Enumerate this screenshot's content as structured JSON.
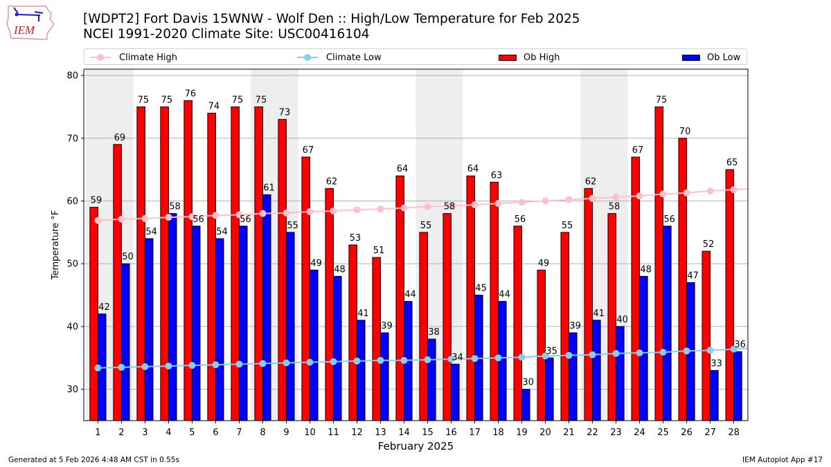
{
  "header": {
    "logo_text": "IEM",
    "title_line1": "[WDPT2] Fort Davis 15WNW - Wolf Den :: High/Low Temperature for Feb 2025",
    "title_line2": "NCEI 1991-2020 Climate Site: USC00416104"
  },
  "legend": {
    "items": [
      {
        "label": "Climate High",
        "kind": "line-marker",
        "color": "#ffc0cb"
      },
      {
        "label": "Climate Low",
        "kind": "line-marker",
        "color": "#87ceeb"
      },
      {
        "label": "Ob High",
        "kind": "bar",
        "color": "#ff0000"
      },
      {
        "label": "Ob Low",
        "kind": "bar",
        "color": "#0000ff"
      }
    ]
  },
  "footer": {
    "generated": "Generated at 5 Feb 2026 4:48 AM CST in 0.55s",
    "app": "IEM Autoplot App #17"
  },
  "chart_data": {
    "type": "bar",
    "title": "[WDPT2] Fort Davis 15WNW - Wolf Den :: High/Low Temperature for Feb 2025",
    "subtitle": "NCEI 1991-2020 Climate Site: USC00416104",
    "xlabel": "February 2025",
    "ylabel": "Temperature °F",
    "ylim": [
      25,
      81
    ],
    "yticks": [
      30,
      40,
      50,
      60,
      70,
      80
    ],
    "grid": "horizontal",
    "legend_position": "top (above plot, full width)",
    "weekend_shaded_days": [
      1,
      2,
      8,
      9,
      15,
      16,
      22,
      23
    ],
    "categories": [
      "1",
      "2",
      "3",
      "4",
      "5",
      "6",
      "7",
      "8",
      "9",
      "10",
      "11",
      "12",
      "13",
      "14",
      "15",
      "16",
      "17",
      "18",
      "19",
      "20",
      "21",
      "22",
      "23",
      "24",
      "25",
      "26",
      "27",
      "28"
    ],
    "series": [
      {
        "name": "Ob High",
        "type": "bar",
        "color": "#ff0000",
        "values": [
          59,
          69,
          75,
          75,
          76,
          74,
          75,
          75,
          73,
          67,
          62,
          53,
          51,
          64,
          55,
          58,
          64,
          63,
          56,
          49,
          55,
          62,
          58,
          67,
          75,
          70,
          52,
          65
        ]
      },
      {
        "name": "Ob Low",
        "type": "bar",
        "color": "#0000ff",
        "values": [
          42,
          50,
          54,
          58,
          56,
          54,
          56,
          61,
          55,
          49,
          48,
          41,
          39,
          44,
          38,
          34,
          45,
          44,
          30,
          35,
          39,
          41,
          40,
          48,
          56,
          47,
          33,
          36
        ]
      },
      {
        "name": "Climate High",
        "type": "line",
        "color": "#ffc0cb",
        "values": [
          56.9,
          57.1,
          57.2,
          57.4,
          57.5,
          57.7,
          57.8,
          58.0,
          58.1,
          58.3,
          58.4,
          58.6,
          58.7,
          58.9,
          59.1,
          59.2,
          59.4,
          59.6,
          59.8,
          60.0,
          60.2,
          60.4,
          60.6,
          60.8,
          61.1,
          61.3,
          61.6,
          61.8
        ]
      },
      {
        "name": "Climate Low",
        "type": "line",
        "color": "#87ceeb",
        "values": [
          33.4,
          33.5,
          33.6,
          33.7,
          33.8,
          33.9,
          34.0,
          34.1,
          34.2,
          34.3,
          34.4,
          34.5,
          34.6,
          34.6,
          34.7,
          34.8,
          34.9,
          35.0,
          35.1,
          35.3,
          35.4,
          35.5,
          35.7,
          35.8,
          35.9,
          36.1,
          36.2,
          36.4
        ]
      }
    ]
  }
}
